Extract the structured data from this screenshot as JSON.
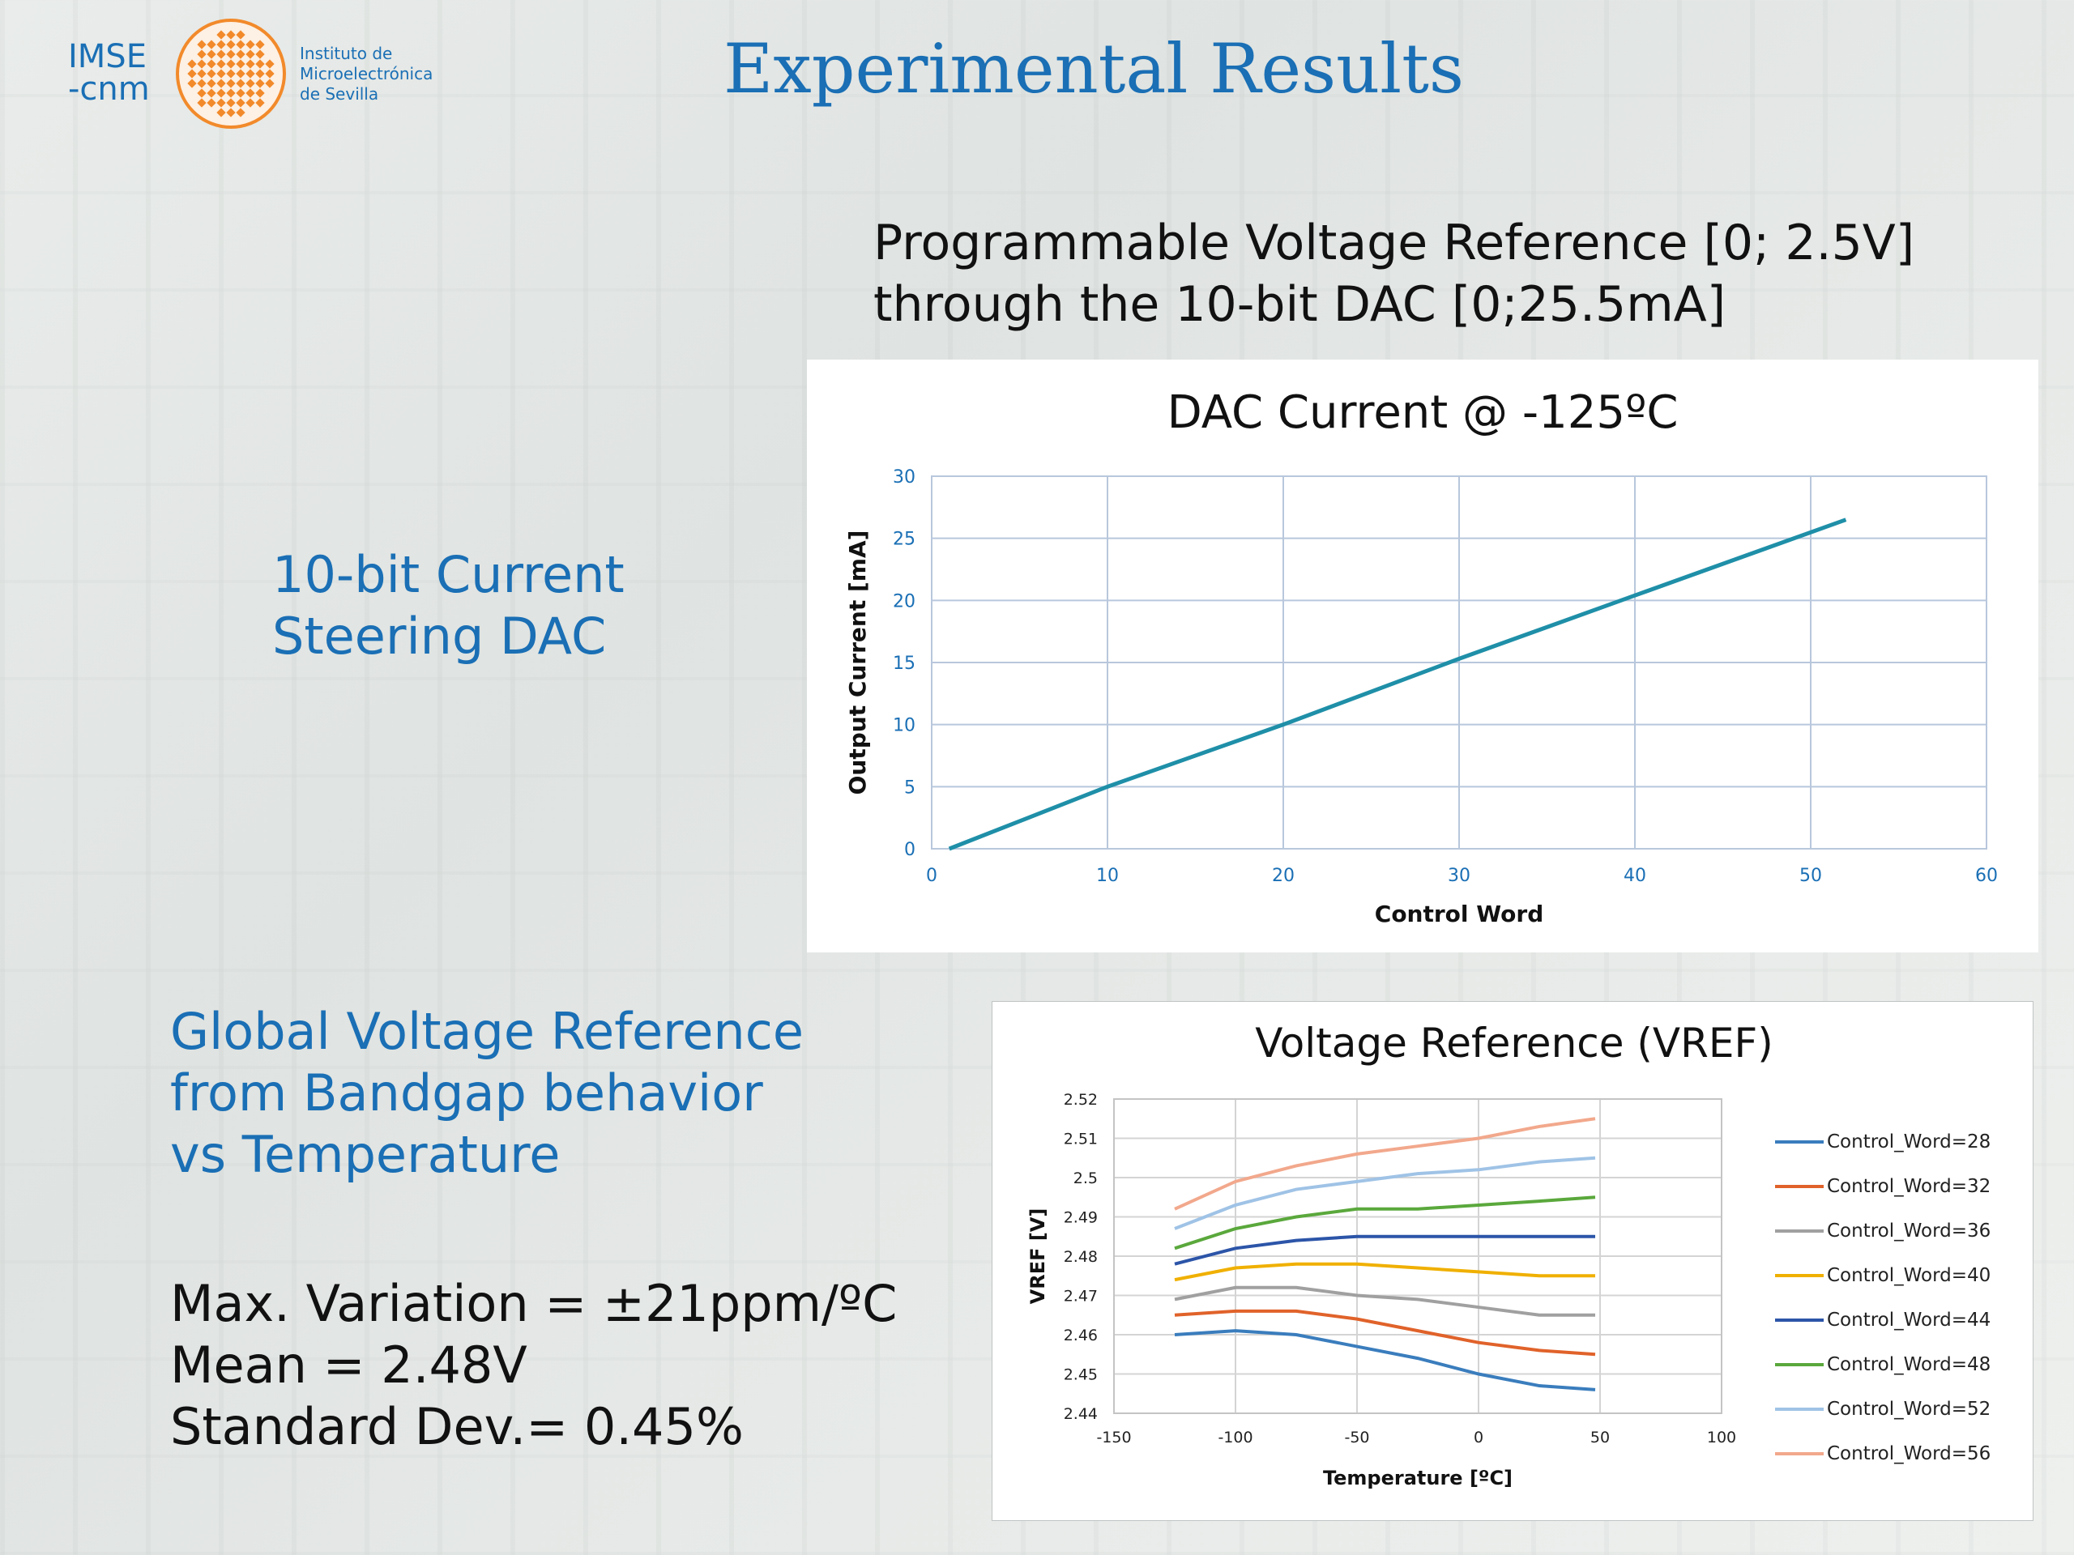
{
  "logo": {
    "word1": "IMSE",
    "word2": "-cnm",
    "sub": [
      "Instituto de",
      "Microelectrónica",
      "de Sevilla"
    ],
    "color": "#1a6fb5",
    "accent": "#f28a2b"
  },
  "slide": {
    "title": "Experimental Results",
    "dac_caption_line1": "Programmable Voltage Reference [0; 2.5V]",
    "dac_caption_line2": "through the 10-bit DAC [0;25.5mA]",
    "dac_label_line1": "10-bit Current",
    "dac_label_line2": "Steering DAC",
    "gvr_line1": "Global Voltage Reference",
    "gvr_line2": "from Bandgap behavior",
    "gvr_line3": "vs Temperature",
    "stat1": "Max. Variation = ±21ppm/ºC",
    "stat2": "Mean = 2.48V",
    "stat3": "Standard Dev.= 0.45%"
  },
  "chart_data": [
    {
      "type": "line",
      "title": "DAC Current @ -125ºC",
      "xlabel": "Control Word",
      "ylabel": "Output Current [mA]",
      "xlim": [
        0,
        60
      ],
      "ylim": [
        0,
        30
      ],
      "xticks": [
        "0",
        "10",
        "20",
        "30",
        "40",
        "50",
        "60"
      ],
      "yticks": [
        "0",
        "5",
        "10",
        "15",
        "20",
        "25",
        "30"
      ],
      "grid": true,
      "legend": "none",
      "series": [
        {
          "color": "#1f8fa8",
          "x": [
            1,
            10,
            20,
            30,
            40,
            52
          ],
          "y": [
            0,
            5,
            10,
            15.3,
            20.4,
            26.5
          ]
        }
      ]
    },
    {
      "type": "line",
      "title": "Voltage Reference (VREF)",
      "xlabel": "Temperature [ºC]",
      "ylabel": "VREF [V]",
      "xlim": [
        -150,
        100
      ],
      "ylim": [
        2.44,
        2.52
      ],
      "xticks": [
        "-150",
        "-100",
        "-50",
        "0",
        "50",
        "100"
      ],
      "yticks": [
        "2.44",
        "2.45",
        "2.46",
        "2.47",
        "2.48",
        "2.49",
        "2.5",
        "2.51",
        "2.52"
      ],
      "grid": true,
      "legend": "right",
      "x": [
        -125,
        -100,
        -75,
        -50,
        -25,
        0,
        25,
        48
      ],
      "series": [
        {
          "name": "Control_Word=28",
          "color": "#3a7dbd",
          "values": [
            2.46,
            2.461,
            2.46,
            2.457,
            2.454,
            2.45,
            2.447,
            2.446
          ]
        },
        {
          "name": "Control_Word=32",
          "color": "#e0622a",
          "values": [
            2.465,
            2.466,
            2.466,
            2.464,
            2.461,
            2.458,
            2.456,
            2.455
          ]
        },
        {
          "name": "Control_Word=36",
          "color": "#a0a0a0",
          "values": [
            2.469,
            2.472,
            2.472,
            2.47,
            2.469,
            2.467,
            2.465,
            2.465
          ]
        },
        {
          "name": "Control_Word=40",
          "color": "#f0b000",
          "values": [
            2.474,
            2.477,
            2.478,
            2.478,
            2.477,
            2.476,
            2.475,
            2.475
          ]
        },
        {
          "name": "Control_Word=44",
          "color": "#2c55a8",
          "values": [
            2.478,
            2.482,
            2.484,
            2.485,
            2.485,
            2.485,
            2.485,
            2.485
          ]
        },
        {
          "name": "Control_Word=48",
          "color": "#5aa83c",
          "values": [
            2.482,
            2.487,
            2.49,
            2.492,
            2.492,
            2.493,
            2.494,
            2.495
          ]
        },
        {
          "name": "Control_Word=52",
          "color": "#9fc3e6",
          "values": [
            2.487,
            2.493,
            2.497,
            2.499,
            2.501,
            2.502,
            2.504,
            2.505
          ]
        },
        {
          "name": "Control_Word=56",
          "color": "#f2a88c",
          "values": [
            2.492,
            2.499,
            2.503,
            2.506,
            2.508,
            2.51,
            2.513,
            2.515
          ]
        }
      ]
    }
  ]
}
